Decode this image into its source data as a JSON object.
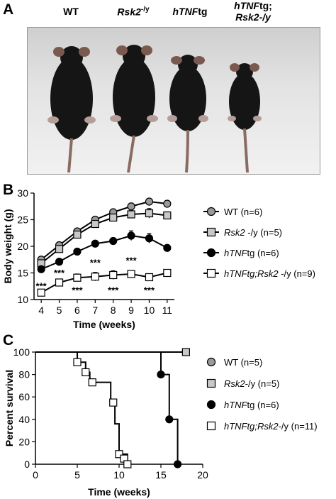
{
  "panels": {
    "a": {
      "letter": "A"
    },
    "b": {
      "letter": "B"
    },
    "c": {
      "letter": "C"
    }
  },
  "photo": {
    "labels": [
      {
        "line1_italic": "",
        "line1_plain": "WT",
        "line2": ""
      },
      {
        "line1_italic": "Rsk2",
        "line1_plain": "-/y",
        "line2": ""
      },
      {
        "line1_italic": "hTNF",
        "line1_plain": "tg",
        "line2": ""
      },
      {
        "line1_italic": "hTNF",
        "line1_plain": "tg;",
        "line2": "Rsk2-/y"
      }
    ]
  },
  "colors": {
    "wt": "#9a9a9a",
    "rsk2": "#c8c8c8",
    "htnf": "#000000",
    "double": "#ffffff",
    "stroke": "#000000"
  },
  "chart_data": [
    {
      "type": "line",
      "xlabel": "Time (weeks)",
      "ylabel": "Body weight (g)",
      "x": [
        4,
        5,
        6,
        7,
        8,
        9,
        10,
        11
      ],
      "xlim": [
        3.6,
        11.4
      ],
      "ylim": [
        10,
        30
      ],
      "yticks": [
        10,
        15,
        20,
        25,
        30
      ],
      "xticks": [
        4,
        5,
        6,
        7,
        8,
        9,
        10,
        11
      ],
      "legend_position": "right",
      "series": [
        {
          "name": "WT (n=6)",
          "name_italic": "",
          "name_plain": "WT (n=6)",
          "marker": "circle",
          "fill": "#9a9a9a",
          "values": [
            17.5,
            20.2,
            22.8,
            25.0,
            26.4,
            27.5,
            28.4,
            28.0
          ],
          "errors": [
            0.4,
            0.4,
            0.4,
            0.4,
            0.4,
            0.5,
            0.4,
            0.4
          ]
        },
        {
          "name": "Rsk2 -/y (n=5)",
          "name_italic": "Rsk2",
          "name_plain": " -/y (n=5)",
          "marker": "square",
          "fill": "#c8c8c8",
          "values": [
            16.8,
            19.5,
            22.2,
            24.2,
            25.4,
            26.0,
            26.2,
            25.8
          ],
          "errors": [
            0.4,
            0.4,
            0.5,
            0.4,
            0.5,
            0.7,
            0.9,
            0.5
          ]
        },
        {
          "name": "hTNFtg (n=6)",
          "name_italic": "hTNF",
          "name_plain": "tg (n=6)",
          "marker": "circle",
          "fill": "#000000",
          "values": [
            15.7,
            17.1,
            19.0,
            20.5,
            21.0,
            22.0,
            21.5,
            19.7
          ],
          "errors": [
            0.3,
            0.3,
            0.4,
            0.4,
            0.5,
            0.9,
            0.9,
            0.4
          ]
        },
        {
          "name": "hTNFtg;Rsk2 -/y (n=9)",
          "name_italic": "hTNFtg;Rsk2",
          "name_plain": " -/y (n=9)",
          "marker": "square",
          "fill": "#ffffff",
          "values": [
            11.3,
            13.2,
            14.1,
            14.3,
            14.6,
            14.8,
            14.2,
            15.0
          ],
          "errors": [
            0.4,
            0.4,
            0.7,
            0.8,
            0.8,
            0.6,
            0.6,
            0.4
          ]
        }
      ],
      "annotations": [
        {
          "x": 4,
          "y": 12.6,
          "text": "***"
        },
        {
          "x": 5,
          "y": 15.1,
          "text": "***"
        },
        {
          "x": 6,
          "y": 11.8,
          "text": "***"
        },
        {
          "x": 7,
          "y": 17.0,
          "text": "***"
        },
        {
          "x": 8,
          "y": 11.8,
          "text": "***"
        },
        {
          "x": 9,
          "y": 17.4,
          "text": "***"
        },
        {
          "x": 10,
          "y": 11.8,
          "text": "***"
        }
      ]
    },
    {
      "type": "line",
      "subtype": "survival",
      "xlabel": "Time (weeks)",
      "ylabel": "Percent survival",
      "xlim": [
        0,
        20
      ],
      "ylim": [
        0,
        100
      ],
      "xticks": [
        0,
        5,
        10,
        15,
        20
      ],
      "yticks": [
        0,
        20,
        40,
        60,
        80,
        100
      ],
      "legend_position": "right",
      "series": [
        {
          "name": "WT (n=5)",
          "name_italic": "",
          "name_plain": "WT (n=5)",
          "marker": "circle",
          "fill": "#9a9a9a",
          "points": [
            [
              0,
              100
            ],
            [
              18,
              100
            ]
          ],
          "markers": [
            [
              18,
              100
            ]
          ]
        },
        {
          "name": "Rsk2-/y (n=5)",
          "name_italic": "Rsk2",
          "name_plain": "-/y (n=5)",
          "marker": "square",
          "fill": "#c8c8c8",
          "points": [
            [
              0,
              100
            ],
            [
              18,
              100
            ]
          ],
          "markers": [
            [
              18,
              100
            ]
          ]
        },
        {
          "name": "hTNFtg (n=6)",
          "name_italic": "hTNF",
          "name_plain": "tg (n=6)",
          "marker": "circle",
          "fill": "#000000",
          "points": [
            [
              0,
              100
            ],
            [
              15,
              100
            ],
            [
              15,
              80
            ],
            [
              16,
              80
            ],
            [
              16,
              40
            ],
            [
              17,
              40
            ],
            [
              17,
              0
            ]
          ],
          "markers": [
            [
              15,
              80
            ],
            [
              16,
              40
            ],
            [
              17,
              0
            ]
          ]
        },
        {
          "name": "hTNFtg;Rsk2-/y (n=11)",
          "name_italic": "hTNFtg;Rsk2",
          "name_plain": "-/y (n=11)",
          "marker": "square",
          "fill": "#ffffff",
          "points": [
            [
              0,
              100
            ],
            [
              5,
              100
            ],
            [
              5,
              91
            ],
            [
              6,
              91
            ],
            [
              6,
              82
            ],
            [
              6.5,
              82
            ],
            [
              6.5,
              73
            ],
            [
              7.5,
              73
            ],
            [
              7.5,
              73
            ],
            [
              9,
              73
            ],
            [
              9,
              55
            ],
            [
              9.5,
              55
            ],
            [
              9.5,
              36
            ],
            [
              10,
              36
            ],
            [
              10,
              9
            ],
            [
              10.5,
              9
            ],
            [
              10.5,
              9
            ],
            [
              11,
              9
            ],
            [
              11,
              0
            ]
          ],
          "markers": [
            [
              5,
              91
            ],
            [
              6,
              82
            ],
            [
              6.8,
              73
            ],
            [
              9.3,
              55
            ],
            [
              10,
              9
            ],
            [
              10.6,
              5
            ],
            [
              11,
              0
            ]
          ]
        }
      ]
    }
  ]
}
